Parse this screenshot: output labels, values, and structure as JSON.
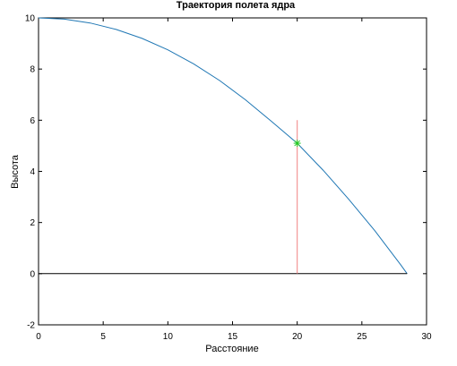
{
  "chart_data": {
    "type": "line",
    "title": "Траектория полета ядра",
    "xlabel": "Расстояние",
    "ylabel": "Высота",
    "xlim": [
      0,
      30
    ],
    "ylim": [
      -2,
      10
    ],
    "x_ticks": [
      "0",
      "5",
      "10",
      "15",
      "20",
      "25",
      "30"
    ],
    "y_ticks": [
      "-2",
      "0",
      "2",
      "4",
      "6",
      "8",
      "10"
    ],
    "grid": false,
    "legend": null,
    "series": [
      {
        "kind": "line",
        "color": "#1f77b4",
        "x": [
          0,
          2,
          4,
          6,
          8,
          10,
          12,
          14,
          16,
          18,
          20,
          22,
          24,
          26,
          28,
          28.5
        ],
        "y": [
          10,
          9.95,
          9.8,
          9.55,
          9.2,
          8.75,
          8.2,
          7.55,
          6.8,
          5.96,
          5.1,
          4.05,
          2.9,
          1.68,
          0.35,
          0
        ]
      },
      {
        "kind": "line",
        "color": "#000000",
        "x": [
          0,
          28.5
        ],
        "y": [
          0,
          0
        ]
      },
      {
        "kind": "line",
        "color": "#f08080",
        "x": [
          20,
          20
        ],
        "y": [
          0,
          6
        ]
      },
      {
        "kind": "marker",
        "marker": "asterisk",
        "color": "#22cc22",
        "x": [
          20
        ],
        "y": [
          5.1
        ]
      }
    ]
  }
}
